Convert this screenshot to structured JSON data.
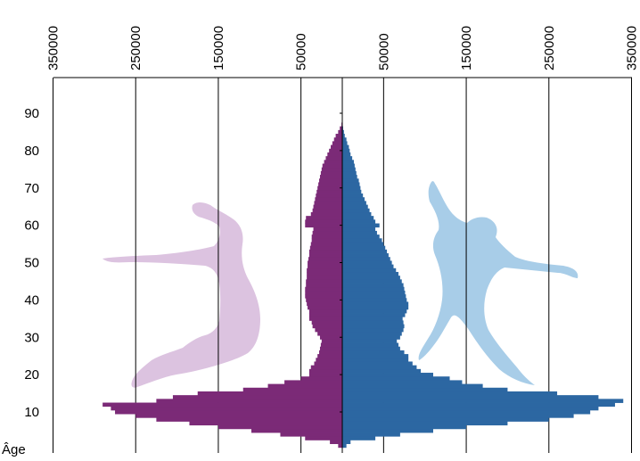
{
  "chart_data": {
    "type": "bar",
    "orientation": "horizontal",
    "subtype": "population-pyramid",
    "title": "",
    "y_axis_label": "Âge",
    "x_axis_position": "top",
    "x_tick_labels": [
      "350000",
      "250000",
      "150000",
      "50000",
      "50000",
      "150000",
      "250000",
      "350000"
    ],
    "x_ticks_signed": [
      -350000,
      -250000,
      -150000,
      -50000,
      50000,
      150000,
      250000,
      350000
    ],
    "y_tick_labels": [
      "10",
      "20",
      "30",
      "40",
      "50",
      "60",
      "70",
      "80",
      "90"
    ],
    "y_ticks": [
      10,
      20,
      30,
      40,
      50,
      60,
      70,
      80,
      90
    ],
    "xlim": [
      -350000,
      350000
    ],
    "ylim": [
      0,
      99
    ],
    "grid": "vertical",
    "colors": {
      "left": "#7b2a77",
      "right": "#2c67a2",
      "left_figure": "#dcc3e0",
      "right_figure": "#a8cde8"
    },
    "series": [
      {
        "side": "left",
        "ages": [
          1,
          2,
          3,
          4,
          5,
          6,
          7,
          8,
          9,
          10,
          11,
          12,
          13,
          14,
          15,
          16,
          17,
          18,
          19,
          20,
          21,
          22,
          23,
          24,
          25,
          26,
          27,
          28,
          29,
          30,
          31,
          32,
          33,
          34,
          35,
          36,
          37,
          38,
          39,
          40,
          41,
          42,
          43,
          44,
          45,
          46,
          47,
          48,
          49,
          50,
          51,
          52,
          53,
          54,
          55,
          56,
          57,
          58,
          59,
          60,
          61,
          62,
          63,
          64,
          65,
          66,
          67,
          68,
          69,
          70,
          71,
          72,
          73,
          74,
          75,
          76,
          77,
          78,
          79,
          80,
          81,
          82,
          83,
          84,
          85,
          86,
          87
        ],
        "values": [
          5000,
          15000,
          45000,
          75000,
          110000,
          150000,
          185000,
          225000,
          250000,
          275000,
          280000,
          290000,
          225000,
          205000,
          175000,
          120000,
          90000,
          70000,
          50000,
          40000,
          40000,
          38000,
          34000,
          32000,
          30000,
          28000,
          27000,
          26000,
          25000,
          27000,
          30000,
          33000,
          36000,
          37000,
          40000,
          40000,
          40000,
          42000,
          43000,
          44000,
          45000,
          45000,
          45000,
          44000,
          44000,
          43000,
          43000,
          43000,
          42000,
          42000,
          41000,
          40000,
          40000,
          39000,
          38000,
          37000,
          37000,
          36000,
          35000,
          45000,
          45000,
          44000,
          38000,
          36000,
          35000,
          34000,
          33000,
          32000,
          31000,
          30000,
          29000,
          28000,
          27000,
          26000,
          25000,
          24000,
          22000,
          20000,
          18000,
          16000,
          14000,
          12000,
          10000,
          8000,
          5000,
          3000,
          1000
        ]
      },
      {
        "side": "right",
        "ages": [
          1,
          2,
          3,
          4,
          5,
          6,
          7,
          8,
          9,
          10,
          11,
          12,
          13,
          14,
          15,
          16,
          17,
          18,
          19,
          20,
          21,
          22,
          23,
          24,
          25,
          26,
          27,
          28,
          29,
          30,
          31,
          32,
          33,
          34,
          35,
          36,
          37,
          38,
          39,
          40,
          41,
          42,
          43,
          44,
          45,
          46,
          47,
          48,
          49,
          50,
          51,
          52,
          53,
          54,
          55,
          56,
          57,
          58,
          59,
          60,
          61,
          62,
          63,
          64,
          65,
          66,
          67,
          68,
          69,
          70,
          71,
          72,
          73,
          74,
          75,
          76,
          77,
          78,
          79,
          80,
          81,
          82,
          83,
          84,
          85,
          86,
          87
        ],
        "values": [
          5000,
          10000,
          40000,
          70000,
          110000,
          150000,
          200000,
          250000,
          280000,
          300000,
          310000,
          330000,
          340000,
          310000,
          260000,
          200000,
          170000,
          145000,
          130000,
          110000,
          95000,
          90000,
          85000,
          80000,
          80000,
          75000,
          70000,
          68000,
          66000,
          70000,
          72000,
          74000,
          75000,
          74000,
          73000,
          76000,
          78000,
          80000,
          80000,
          78000,
          77000,
          76000,
          75000,
          74000,
          72000,
          70000,
          68000,
          65000,
          62000,
          60000,
          58000,
          56000,
          54000,
          52000,
          50000,
          48000,
          45000,
          42000,
          40000,
          45000,
          40000,
          38000,
          35000,
          33000,
          31000,
          29000,
          27000,
          25000,
          23000,
          22000,
          21000,
          20000,
          18000,
          17000,
          16000,
          15000,
          14000,
          12000,
          10000,
          9000,
          8000,
          6000,
          5000,
          3000,
          2000,
          1000,
          500
        ]
      }
    ]
  }
}
